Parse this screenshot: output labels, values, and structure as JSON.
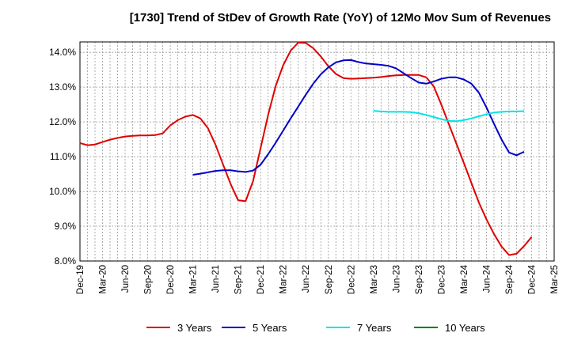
{
  "chart_data": {
    "type": "line",
    "title": "[1730]  Trend of StDev of Growth Rate (YoY) of 12Mo Mov Sum of Revenues",
    "xlabel": "",
    "ylabel": "",
    "ylim": [
      8.0,
      14.3
    ],
    "y_ticks": [
      8.0,
      9.0,
      10.0,
      11.0,
      12.0,
      13.0,
      14.0
    ],
    "y_tick_labels": [
      "8.0%",
      "9.0%",
      "10.0%",
      "11.0%",
      "12.0%",
      "13.0%",
      "14.0%"
    ],
    "x_tick_labels": [
      "Dec-19",
      "Mar-20",
      "Jun-20",
      "Sep-20",
      "Dec-20",
      "Mar-21",
      "Jun-21",
      "Sep-21",
      "Dec-21",
      "Mar-22",
      "Jun-22",
      "Sep-22",
      "Dec-22",
      "Mar-23",
      "Jun-23",
      "Sep-23",
      "Dec-23",
      "Mar-24",
      "Jun-24",
      "Sep-24",
      "Dec-24",
      "Mar-25"
    ],
    "grid": true,
    "legend_position": "bottom",
    "series": [
      {
        "name": "3 Years",
        "color": "#e00000",
        "start_index": 0,
        "values": [
          11.39,
          11.33,
          11.35,
          11.42,
          11.49,
          11.54,
          11.58,
          11.6,
          11.61,
          11.61,
          11.62,
          11.67,
          11.9,
          12.05,
          12.15,
          12.2,
          12.1,
          11.82,
          11.35,
          10.78,
          10.22,
          9.75,
          9.72,
          10.3,
          11.25,
          12.2,
          13.03,
          13.63,
          14.05,
          14.28,
          14.27,
          14.12,
          13.88,
          13.6,
          13.38,
          13.26,
          13.24,
          13.25,
          13.26,
          13.27,
          13.29,
          13.32,
          13.34,
          13.35,
          13.35,
          13.35,
          13.28,
          13.02,
          12.5,
          11.94,
          11.38,
          10.82,
          10.25,
          9.68,
          9.2,
          8.78,
          8.42,
          8.17,
          8.21,
          8.43,
          8.69
        ]
      },
      {
        "name": "5 Years",
        "color": "#0000cc",
        "start_index": 15,
        "values": [
          10.48,
          10.51,
          10.55,
          10.59,
          10.61,
          10.61,
          10.58,
          10.56,
          10.6,
          10.77,
          11.07,
          11.4,
          11.75,
          12.1,
          12.44,
          12.78,
          13.1,
          13.37,
          13.57,
          13.71,
          13.77,
          13.78,
          13.72,
          13.68,
          13.66,
          13.64,
          13.61,
          13.54,
          13.4,
          13.26,
          13.13,
          13.1,
          13.16,
          13.24,
          13.28,
          13.28,
          13.22,
          13.1,
          12.84,
          12.42,
          11.95,
          11.5,
          11.12,
          11.04,
          11.14
        ]
      },
      {
        "name": "7 Years",
        "color": "#00e5e5",
        "start_index": 39,
        "values": [
          12.32,
          12.3,
          12.29,
          12.29,
          12.29,
          12.28,
          12.25,
          12.2,
          12.14,
          12.08,
          12.03,
          12.02,
          12.05,
          12.1,
          12.16,
          12.22,
          12.27,
          12.29,
          12.3,
          12.3,
          12.31
        ]
      },
      {
        "name": "10 Years",
        "color": "#008000",
        "start_index": 0,
        "values": []
      }
    ]
  }
}
